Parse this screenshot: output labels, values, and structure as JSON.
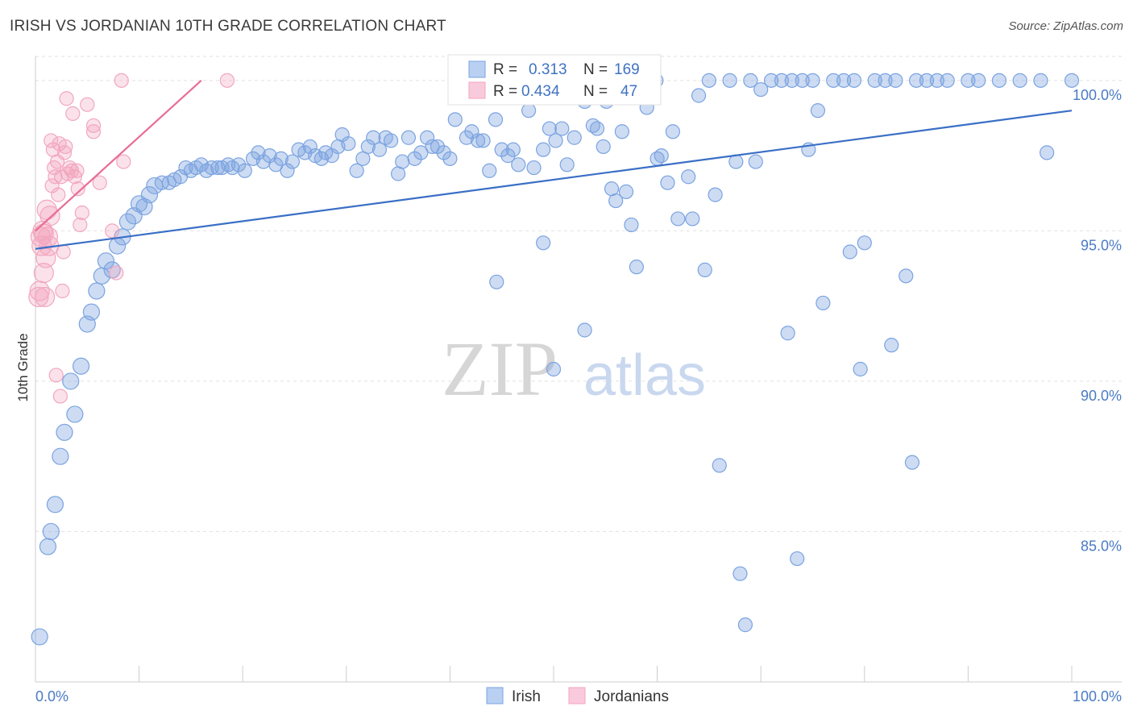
{
  "title": "IRISH VS JORDANIAN 10TH GRADE CORRELATION CHART",
  "source": "Source: ZipAtlas.com",
  "watermark": {
    "zip": "ZIP",
    "atlas": "atlas"
  },
  "chart_data": {
    "type": "scatter",
    "title": "IRISH VS JORDANIAN 10TH GRADE CORRELATION CHART",
    "xlabel": "",
    "ylabel": "10th Grade",
    "xlim": [
      0,
      100
    ],
    "ylim": [
      80.0,
      100.8
    ],
    "x_tick_labels": [
      "0.0%",
      "100.0%"
    ],
    "y_ticks": [
      85,
      90,
      95,
      100
    ],
    "y_tick_labels": [
      "85.0%",
      "90.0%",
      "95.0%",
      "100.0%"
    ],
    "grid": true,
    "legend_placement": "top-center",
    "legend": [
      {
        "series": "Irish",
        "r_label": "R =",
        "r_value": "0.313",
        "n_label": "N =",
        "n_value": "169"
      },
      {
        "series": "Jordanians",
        "r_label": "R =",
        "r_value": "0.434",
        "n_label": "N =",
        "n_value": "47"
      }
    ],
    "series": [
      {
        "name": "Irish",
        "color": "#7ba3e0",
        "line_color": "#3a6fc6",
        "trend": {
          "x": [
            0,
            100
          ],
          "y": [
            94.4,
            99.0
          ]
        },
        "points": [
          [
            0.4,
            81.5
          ],
          [
            1.2,
            84.5
          ],
          [
            1.5,
            85.0
          ],
          [
            1.9,
            85.9
          ],
          [
            2.4,
            87.5
          ],
          [
            2.8,
            88.3
          ],
          [
            3.8,
            88.9
          ],
          [
            3.4,
            90.0
          ],
          [
            4.4,
            90.5
          ],
          [
            5.0,
            91.9
          ],
          [
            5.4,
            92.3
          ],
          [
            5.9,
            93.0
          ],
          [
            6.4,
            93.5
          ],
          [
            6.8,
            94.0
          ],
          [
            7.4,
            93.7
          ],
          [
            7.9,
            94.5
          ],
          [
            8.4,
            94.8
          ],
          [
            8.9,
            95.3
          ],
          [
            9.5,
            95.5
          ],
          [
            10.0,
            95.9
          ],
          [
            10.5,
            95.8
          ],
          [
            11.0,
            96.2
          ],
          [
            11.5,
            96.5
          ],
          [
            12.2,
            96.6
          ],
          [
            12.9,
            96.6
          ],
          [
            13.4,
            96.7
          ],
          [
            14.0,
            96.8
          ],
          [
            14.5,
            97.1
          ],
          [
            15.0,
            97.0
          ],
          [
            15.5,
            97.1
          ],
          [
            16.0,
            97.2
          ],
          [
            16.5,
            97.0
          ],
          [
            17.0,
            97.1
          ],
          [
            17.6,
            97.1
          ],
          [
            18.0,
            97.1
          ],
          [
            18.6,
            97.2
          ],
          [
            19.0,
            97.1
          ],
          [
            19.6,
            97.2
          ],
          [
            20.2,
            97.0
          ],
          [
            21.0,
            97.4
          ],
          [
            21.5,
            97.6
          ],
          [
            22.0,
            97.3
          ],
          [
            22.6,
            97.5
          ],
          [
            23.2,
            97.2
          ],
          [
            23.7,
            97.4
          ],
          [
            24.3,
            97.0
          ],
          [
            24.8,
            97.3
          ],
          [
            25.4,
            97.7
          ],
          [
            26.0,
            97.6
          ],
          [
            26.5,
            97.8
          ],
          [
            27.0,
            97.5
          ],
          [
            27.6,
            97.4
          ],
          [
            28.0,
            97.6
          ],
          [
            28.6,
            97.5
          ],
          [
            29.2,
            97.8
          ],
          [
            29.6,
            98.2
          ],
          [
            30.2,
            97.9
          ],
          [
            31.0,
            97.0
          ],
          [
            31.6,
            97.4
          ],
          [
            32.1,
            97.8
          ],
          [
            32.6,
            98.1
          ],
          [
            33.2,
            97.7
          ],
          [
            33.8,
            98.1
          ],
          [
            34.3,
            98.0
          ],
          [
            35.0,
            96.9
          ],
          [
            35.4,
            97.3
          ],
          [
            36.0,
            98.1
          ],
          [
            36.6,
            97.4
          ],
          [
            37.2,
            97.6
          ],
          [
            37.8,
            98.1
          ],
          [
            38.3,
            97.8
          ],
          [
            38.8,
            97.8
          ],
          [
            39.4,
            97.6
          ],
          [
            40.0,
            97.4
          ],
          [
            40.5,
            98.7
          ],
          [
            41.6,
            98.1
          ],
          [
            42.1,
            98.3
          ],
          [
            42.7,
            98.0
          ],
          [
            43.2,
            98.0
          ],
          [
            43.8,
            97.0
          ],
          [
            44.4,
            98.7
          ],
          [
            45.0,
            97.7
          ],
          [
            45.6,
            97.5
          ],
          [
            46.1,
            97.7
          ],
          [
            46.6,
            97.2
          ],
          [
            47.1,
            100.0
          ],
          [
            47.6,
            99.0
          ],
          [
            48.1,
            97.1
          ],
          [
            49.0,
            97.7
          ],
          [
            49.6,
            98.4
          ],
          [
            50.2,
            98.0
          ],
          [
            50.8,
            98.4
          ],
          [
            51.3,
            97.2
          ],
          [
            52.0,
            98.1
          ],
          [
            53.0,
            99.3
          ],
          [
            53.8,
            98.5
          ],
          [
            54.2,
            98.4
          ],
          [
            54.8,
            97.8
          ],
          [
            55.1,
            99.3
          ],
          [
            55.6,
            96.4
          ],
          [
            56.0,
            96.0
          ],
          [
            56.6,
            98.3
          ],
          [
            57.0,
            96.3
          ],
          [
            57.5,
            95.2
          ],
          [
            58.0,
            93.8
          ],
          [
            59.0,
            99.1
          ],
          [
            59.9,
            100.0
          ],
          [
            60.0,
            97.4
          ],
          [
            60.4,
            97.5
          ],
          [
            61.0,
            96.6
          ],
          [
            61.5,
            98.3
          ],
          [
            62.0,
            95.4
          ],
          [
            63.0,
            96.8
          ],
          [
            63.4,
            95.4
          ],
          [
            64.0,
            99.5
          ],
          [
            64.6,
            93.7
          ],
          [
            65.0,
            100.0
          ],
          [
            65.6,
            96.2
          ],
          [
            66.0,
            87.2
          ],
          [
            67.0,
            100.0
          ],
          [
            67.6,
            97.3
          ],
          [
            68.0,
            83.6
          ],
          [
            68.5,
            81.9
          ],
          [
            69.0,
            100.0
          ],
          [
            69.5,
            97.3
          ],
          [
            70.0,
            99.7
          ],
          [
            71.0,
            100.0
          ],
          [
            72.0,
            100.0
          ],
          [
            72.6,
            91.6
          ],
          [
            73.0,
            100.0
          ],
          [
            73.5,
            84.1
          ],
          [
            74.0,
            100.0
          ],
          [
            74.6,
            97.7
          ],
          [
            75.0,
            100.0
          ],
          [
            75.5,
            99.0
          ],
          [
            76.0,
            92.6
          ],
          [
            77.0,
            100.0
          ],
          [
            78.0,
            100.0
          ],
          [
            78.6,
            94.3
          ],
          [
            79.0,
            100.0
          ],
          [
            79.6,
            90.4
          ],
          [
            80.0,
            94.6
          ],
          [
            81.0,
            100.0
          ],
          [
            82.0,
            100.0
          ],
          [
            82.6,
            91.2
          ],
          [
            83.0,
            100.0
          ],
          [
            84.0,
            93.5
          ],
          [
            84.6,
            87.3
          ],
          [
            85.0,
            100.0
          ],
          [
            86.0,
            100.0
          ],
          [
            87.0,
            100.0
          ],
          [
            88.0,
            100.0
          ],
          [
            90.0,
            100.0
          ],
          [
            91.0,
            100.0
          ],
          [
            93.0,
            100.0
          ],
          [
            95.0,
            100.0
          ],
          [
            97.0,
            100.0
          ],
          [
            97.6,
            97.6
          ],
          [
            100.0,
            100.0
          ],
          [
            49.0,
            94.6
          ],
          [
            44.5,
            93.3
          ],
          [
            53.0,
            91.7
          ],
          [
            50.0,
            90.4
          ]
        ]
      },
      {
        "name": "Jordanians",
        "color": "#f2a6bf",
        "line_color": "#e86d96",
        "trend": {
          "x": [
            0,
            16
          ],
          "y": [
            95.0,
            100.0
          ]
        },
        "points": [
          [
            0.3,
            92.8
          ],
          [
            0.5,
            94.8
          ],
          [
            0.6,
            94.5
          ],
          [
            0.7,
            95.0
          ],
          [
            0.8,
            93.6
          ],
          [
            0.9,
            92.8
          ],
          [
            1.0,
            94.1
          ],
          [
            1.1,
            95.7
          ],
          [
            1.2,
            94.8
          ],
          [
            1.3,
            94.5
          ],
          [
            1.4,
            95.5
          ],
          [
            1.5,
            98.0
          ],
          [
            1.6,
            96.5
          ],
          [
            1.7,
            97.7
          ],
          [
            1.8,
            97.1
          ],
          [
            1.9,
            96.8
          ],
          [
            2.0,
            90.2
          ],
          [
            2.1,
            97.3
          ],
          [
            2.2,
            96.2
          ],
          [
            2.3,
            97.9
          ],
          [
            2.4,
            89.5
          ],
          [
            2.5,
            96.8
          ],
          [
            2.6,
            93.0
          ],
          [
            2.7,
            94.3
          ],
          [
            2.8,
            97.6
          ],
          [
            2.9,
            97.8
          ],
          [
            3.0,
            99.4
          ],
          [
            3.1,
            96.9
          ],
          [
            3.3,
            97.1
          ],
          [
            3.5,
            97.0
          ],
          [
            3.6,
            98.9
          ],
          [
            3.8,
            96.8
          ],
          [
            4.0,
            97.0
          ],
          [
            4.1,
            96.4
          ],
          [
            4.3,
            95.2
          ],
          [
            4.5,
            95.6
          ],
          [
            5.0,
            99.2
          ],
          [
            5.6,
            98.5
          ],
          [
            5.6,
            98.3
          ],
          [
            6.2,
            96.6
          ],
          [
            7.4,
            95.0
          ],
          [
            7.8,
            93.6
          ],
          [
            8.3,
            100.0
          ],
          [
            8.5,
            97.3
          ],
          [
            18.5,
            100.0
          ],
          [
            0.4,
            93.0
          ],
          [
            0.8,
            94.9
          ]
        ]
      }
    ]
  },
  "bottom_legend": [
    {
      "name": "Irish",
      "color": "#7ba3e0"
    },
    {
      "name": "Jordanians",
      "color": "#f2a6bf"
    }
  ]
}
